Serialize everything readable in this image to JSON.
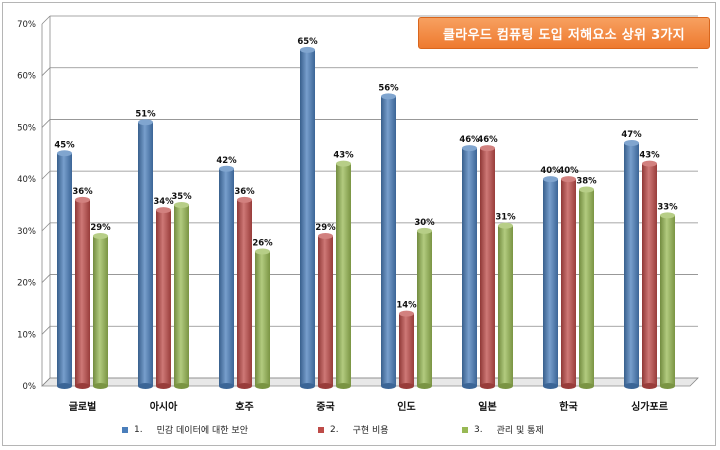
{
  "chart_data": {
    "type": "bar",
    "title": "클라우드 컴퓨팅 도입 저해요소 상위 3가지",
    "categories": [
      "글로벌",
      "아시아",
      "호주",
      "중국",
      "인도",
      "일본",
      "한국",
      "싱가포르"
    ],
    "series": [
      {
        "name": "민감 데이터에 대한 보안",
        "legend_number": "1.",
        "color": "#4a7ebb",
        "values": [
          45,
          51,
          42,
          65,
          56,
          46,
          40,
          47
        ]
      },
      {
        "name": "구현 비용",
        "legend_number": "2.",
        "color": "#be4b48",
        "values": [
          36,
          34,
          36,
          29,
          14,
          46,
          40,
          43
        ]
      },
      {
        "name": "관리 및 통제",
        "legend_number": "3.",
        "color": "#98b954",
        "values": [
          29,
          35,
          26,
          43,
          30,
          31,
          38,
          33
        ]
      }
    ],
    "ylim": [
      0,
      70
    ],
    "yticks": [
      "0%",
      "10%",
      "20%",
      "30%",
      "40%",
      "50%",
      "60%",
      "70%"
    ],
    "value_suffix": "%",
    "grid": true,
    "legend_position": "bottom"
  }
}
